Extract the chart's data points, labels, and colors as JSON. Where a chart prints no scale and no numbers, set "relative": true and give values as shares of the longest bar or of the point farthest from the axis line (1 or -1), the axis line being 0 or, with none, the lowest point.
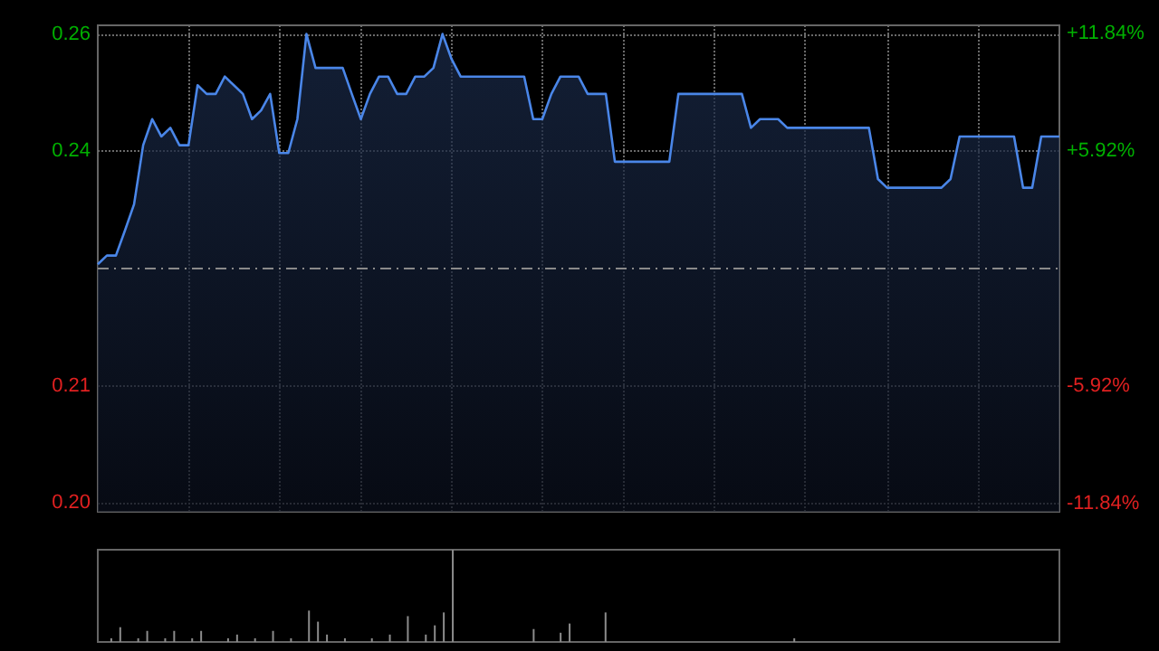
{
  "chart_data": [
    {
      "type": "area",
      "color": "#4a86e8",
      "categories": [
        null,
        null,
        null,
        null,
        null,
        null,
        null,
        null,
        null,
        null,
        null,
        null,
        null,
        null,
        null,
        null,
        null,
        null,
        null,
        null,
        null,
        null,
        null,
        null,
        null,
        null,
        null,
        null,
        null,
        null,
        null,
        null,
        null,
        null,
        null,
        null,
        null,
        null,
        null,
        null,
        null,
        null,
        null,
        null,
        null,
        null,
        null,
        null,
        null,
        null,
        null,
        null,
        null,
        null,
        null,
        null,
        null,
        null,
        null,
        null,
        null,
        null,
        null,
        null,
        null,
        null,
        null,
        null,
        null,
        null,
        null,
        null,
        null,
        null,
        null,
        null,
        null,
        null,
        null,
        null,
        null,
        null,
        null,
        null,
        null,
        null,
        null,
        null,
        null,
        null,
        null,
        null,
        null,
        null,
        null,
        null,
        null,
        null,
        null,
        null,
        null,
        null,
        null,
        null,
        null,
        null,
        null
      ],
      "values": [
        0.2287,
        0.2297,
        0.2297,
        0.2326,
        0.2356,
        0.2424,
        0.2454,
        0.2434,
        0.2444,
        0.2424,
        0.2424,
        0.2493,
        0.2483,
        0.2483,
        0.2503,
        0.2493,
        0.2483,
        0.2454,
        0.2464,
        0.2483,
        0.2415,
        0.2415,
        0.2454,
        0.2552,
        0.2513,
        0.2513,
        0.2513,
        0.2513,
        0.2483,
        0.2454,
        0.2483,
        0.2503,
        0.2503,
        0.2483,
        0.2483,
        0.2503,
        0.2503,
        0.2513,
        0.2552,
        0.2523,
        0.2503,
        0.2503,
        0.2503,
        0.2503,
        0.2503,
        0.2503,
        0.2503,
        0.2503,
        0.2454,
        0.2454,
        0.2483,
        0.2503,
        0.2503,
        0.2503,
        0.2483,
        0.2483,
        0.2483,
        0.2405,
        0.2405,
        0.2405,
        0.2405,
        0.2405,
        0.2405,
        0.2405,
        0.2483,
        0.2483,
        0.2483,
        0.2483,
        0.2483,
        0.2483,
        0.2483,
        0.2483,
        0.2444,
        0.2454,
        0.2454,
        0.2454,
        0.2444,
        0.2444,
        0.2444,
        0.2444,
        0.2444,
        0.2444,
        0.2444,
        0.2444,
        0.2444,
        0.2444,
        0.2385,
        0.2375,
        0.2375,
        0.2375,
        0.2375,
        0.2375,
        0.2375,
        0.2375,
        0.2385,
        0.2434,
        0.2434,
        0.2434,
        0.2434,
        0.2434,
        0.2434,
        0.2434,
        0.2375,
        0.2375,
        0.2434,
        0.2434,
        0.2434
      ],
      "ylim": [
        0.2002,
        0.2562
      ],
      "yticks": [
        {
          "value": 0.2012,
          "label": "0.20"
        },
        {
          "value": 0.2147,
          "label": "0.21"
        },
        {
          "value": 0.2417,
          "label": "0.24"
        },
        {
          "value": 0.2552,
          "label": "0.26"
        }
      ],
      "y2lim": [
        -12.27,
        12.27
      ],
      "y2ticks": [
        {
          "value": -11.84,
          "label": "-11.84%"
        },
        {
          "value": -5.92,
          "label": "-5.92%"
        },
        {
          "value": 5.92,
          "label": "+5.92%"
        },
        {
          "value": 11.84,
          "label": "+11.84%"
        }
      ],
      "ref_lines": [
        {
          "axis": "y",
          "value": 0.2282,
          "line_style": "dashed"
        }
      ],
      "grid": true,
      "tick_labels": "y"
    },
    {
      "type": "bar",
      "color": "#8c8c8c",
      "relative": true,
      "tick_labels": false,
      "categories": [
        null,
        null,
        null,
        null,
        null,
        null,
        null,
        null,
        null,
        null,
        null,
        null,
        null,
        null,
        null,
        null,
        null,
        null,
        null,
        null,
        null,
        null,
        null,
        null,
        null,
        null,
        null,
        null,
        null,
        null,
        null,
        null,
        null,
        null,
        null,
        null,
        null,
        null,
        null,
        null,
        null,
        null,
        null,
        null,
        null,
        null,
        null,
        null,
        null,
        null,
        null,
        null,
        null,
        null,
        null,
        null,
        null,
        null,
        null,
        null,
        null,
        null,
        null,
        null,
        null,
        null,
        null,
        null,
        null,
        null,
        null,
        null,
        null,
        null,
        null,
        null,
        null,
        null,
        null,
        null,
        null,
        null,
        null,
        null,
        null,
        null,
        null,
        null,
        null,
        null,
        null,
        null,
        null,
        null,
        null,
        null,
        null,
        null,
        null,
        null,
        null,
        null,
        null,
        null,
        null,
        null,
        null
      ],
      "values": [
        null,
        0.04,
        0.16,
        null,
        0.04,
        0.12,
        null,
        0.04,
        0.12,
        null,
        0.04,
        0.12,
        null,
        null,
        0.04,
        0.08,
        null,
        0.04,
        null,
        0.12,
        null,
        0.04,
        null,
        0.34,
        0.22,
        0.08,
        null,
        0.04,
        null,
        null,
        0.04,
        null,
        0.08,
        null,
        0.28,
        null,
        0.08,
        0.18,
        0.32,
        1,
        null,
        null,
        null,
        null,
        null,
        null,
        null,
        null,
        0.14,
        null,
        null,
        0.1,
        0.2,
        null,
        null,
        null,
        0.32,
        null,
        null,
        null,
        null,
        null,
        null,
        null,
        null,
        null,
        null,
        null,
        null,
        null,
        null,
        null,
        null,
        null,
        null,
        null,
        null,
        0.04,
        null,
        null,
        null,
        null,
        null,
        null,
        null,
        null,
        null,
        null,
        null,
        null,
        null,
        null,
        null,
        null,
        null,
        null,
        null,
        null,
        null,
        null,
        null,
        null,
        null,
        null,
        null,
        null,
        null
      ]
    }
  ]
}
